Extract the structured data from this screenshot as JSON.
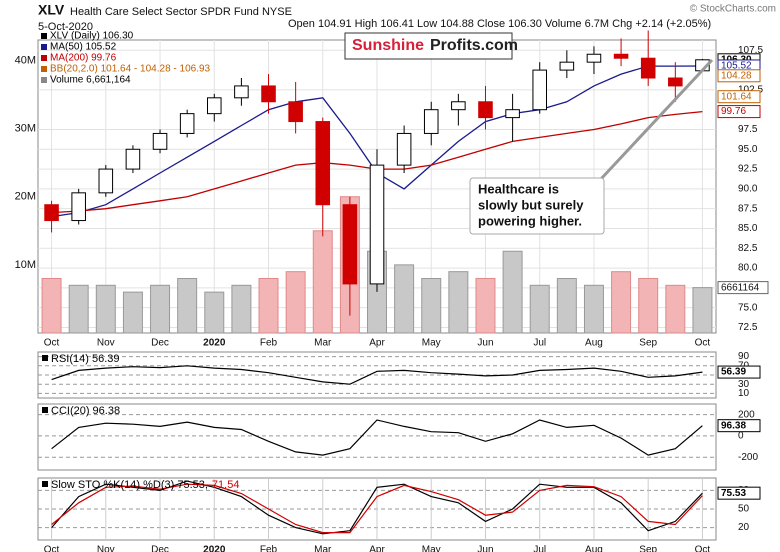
{
  "chart_data": [
    {
      "type": "candlestick",
      "title": "XLV",
      "subtitle": "Health Care Select Sector SPDR Fund NYSE",
      "date": "5-Oct-2020",
      "quote": "Open 104.91  High 106.41  Low 104.88  Close 106.30  Volume 6.7M  Chg +2.14 (+2.05%)",
      "source": "© StockCharts.com",
      "watermark": [
        "Sunshine",
        "Profits.com"
      ],
      "annotation": [
        "Healthcare is",
        "slowly but surely",
        "powering higher."
      ],
      "categories": [
        "Oct",
        null,
        "Nov",
        null,
        "Dec",
        null,
        "2020",
        null,
        "Feb",
        null,
        "Mar",
        null,
        "Apr",
        null,
        "May",
        null,
        "Jun",
        null,
        "Jul",
        null,
        "Aug",
        null,
        "Sep",
        null,
        "Oct"
      ],
      "name": "XLV (Daily) 106.30",
      "open": [
        88,
        86,
        89.5,
        92.5,
        95,
        97,
        99.5,
        101.5,
        103,
        101,
        98.5,
        88,
        78,
        93,
        97,
        100,
        101,
        99,
        100,
        105,
        106,
        107,
        106.5,
        104,
        104.91
      ],
      "high": [
        88.5,
        90,
        93,
        95.5,
        97.5,
        100,
        102,
        104,
        104.5,
        103.5,
        99,
        89,
        95,
        98,
        101,
        102,
        103,
        102,
        106,
        107.5,
        108,
        109,
        110,
        106,
        106.41
      ],
      "low": [
        84.5,
        85.5,
        89,
        92,
        94.5,
        96.5,
        98.5,
        100.5,
        99.5,
        97,
        84,
        74,
        77,
        92,
        95.5,
        98,
        97.5,
        96,
        99.5,
        104,
        104.5,
        105.5,
        103,
        101,
        104.88
      ],
      "close": [
        86,
        89.5,
        92.5,
        95,
        97,
        99.5,
        101.5,
        103,
        101,
        98.5,
        88,
        78,
        93,
        97,
        100,
        101,
        99,
        100,
        105,
        106,
        107,
        106.5,
        104,
        103,
        106.3
      ],
      "series": [
        {
          "name": "MA(50) 105.52",
          "color": "#1a1a8c",
          "values": [
            86.5,
            87,
            88,
            90,
            92,
            94,
            96,
            98,
            100,
            101,
            101.5,
            97,
            92,
            90,
            93,
            96,
            98.5,
            99.5,
            100,
            101,
            103,
            104.5,
            105.5,
            105.5,
            105.52
          ]
        },
        {
          "name": "MA(200) 99.76",
          "color": "#c00000",
          "values": [
            87,
            87.2,
            87.5,
            88,
            88.5,
            89,
            90,
            91,
            92,
            93,
            93.3,
            93,
            92.5,
            92.5,
            93,
            94,
            95,
            96,
            96.5,
            97,
            97.5,
            98.2,
            99,
            99.4,
            99.76
          ]
        }
      ],
      "bb_label": "BB(20,2.0) 101.64 - 104.28 - 106.93",
      "volume": {
        "name": "Volume 6,661,164",
        "ylim": [
          0,
          43
        ],
        "yticks": [
          {
            "value": 10,
            "label": "10M"
          },
          {
            "value": 20,
            "label": "20M"
          },
          {
            "value": 30,
            "label": "30M"
          },
          {
            "value": 40,
            "label": "40M"
          }
        ],
        "values": [
          8,
          7,
          7,
          6,
          7,
          8,
          6,
          7,
          8,
          9,
          15,
          20,
          12,
          10,
          8,
          9,
          8,
          12,
          7,
          8,
          7,
          9,
          8,
          7,
          6.66
        ],
        "badge": {
          "value": 6.661164,
          "label": "6661164"
        }
      },
      "ylim": [
        71.8,
        108.8
      ],
      "yticks": [
        {
          "value": 72.5,
          "label": "72.5"
        },
        {
          "value": 75,
          "label": "75.0"
        },
        {
          "value": 77.5,
          "label": "77.5"
        },
        {
          "value": 80,
          "label": "80.0"
        },
        {
          "value": 82.5,
          "label": "82.5"
        },
        {
          "value": 85,
          "label": "85.0"
        },
        {
          "value": 87.5,
          "label": "87.5"
        },
        {
          "value": 90,
          "label": "90.0"
        },
        {
          "value": 92.5,
          "label": "92.5"
        },
        {
          "value": 95,
          "label": "95.0"
        },
        {
          "value": 97.5,
          "label": "97.5"
        },
        {
          "value": 102.5,
          "label": "102.5"
        },
        {
          "value": 107.5,
          "label": "107.5"
        }
      ],
      "badges": [
        {
          "value": 106.3,
          "label": "106.30",
          "color": "#000000"
        },
        {
          "value": 105.52,
          "label": "105.52",
          "color": "#1a1a8c"
        },
        {
          "value": 104.28,
          "label": "104.28",
          "color": "#c06000"
        },
        {
          "value": 101.64,
          "label": "101.64",
          "color": "#c06000"
        },
        {
          "value": 99.76,
          "label": "99.76",
          "color": "#c00000"
        }
      ],
      "grid": true
    },
    {
      "type": "line",
      "ylim": [
        0,
        100
      ],
      "yticks": [
        90,
        70,
        50,
        30,
        10
      ],
      "grid": true,
      "series": [
        {
          "name": "RSI(14) 56.39",
          "color": "#000000",
          "values": [
            40,
            60,
            65,
            68,
            66,
            70,
            65,
            62,
            55,
            45,
            35,
            30,
            58,
            60,
            55,
            52,
            48,
            50,
            60,
            62,
            65,
            58,
            45,
            48,
            56.39
          ]
        }
      ],
      "badges": [
        {
          "value": 56.39,
          "label": "56.39",
          "color": "#000000"
        }
      ]
    },
    {
      "type": "line",
      "ylim": [
        -320,
        300
      ],
      "yticks": [
        200,
        0,
        -200
      ],
      "grid": true,
      "series": [
        {
          "name": "CCI(20) 96.38",
          "color": "#000000",
          "values": [
            -120,
            80,
            120,
            110,
            90,
            130,
            80,
            60,
            -50,
            -150,
            -180,
            -120,
            150,
            90,
            40,
            30,
            -50,
            20,
            150,
            80,
            100,
            -20,
            -180,
            -120,
            96.38
          ]
        }
      ],
      "badges": [
        {
          "value": 96.38,
          "label": "96.38",
          "color": "#000000"
        }
      ]
    },
    {
      "type": "line",
      "ylim": [
        0,
        100
      ],
      "yticks": [
        80,
        50,
        20
      ],
      "grid": true,
      "categories": [
        "Oct",
        null,
        "Nov",
        null,
        "Dec",
        null,
        "2020",
        null,
        "Feb",
        null,
        "Mar",
        null,
        "Apr",
        null,
        "May",
        null,
        "Jun",
        null,
        "Jul",
        null,
        "Aug",
        null,
        "Sep",
        null,
        "Oct"
      ],
      "series": [
        {
          "name": "Slow STO %K(14) %D(3) 75.53,",
          "color": "#000000",
          "values": [
            20,
            70,
            90,
            85,
            80,
            95,
            85,
            70,
            40,
            20,
            10,
            15,
            85,
            90,
            70,
            60,
            30,
            50,
            90,
            85,
            85,
            60,
            15,
            30,
            75.53
          ]
        },
        {
          "name": "71.54",
          "color": "#d00000",
          "values": [
            25,
            60,
            85,
            87,
            82,
            90,
            88,
            75,
            50,
            25,
            12,
            12,
            70,
            88,
            78,
            65,
            40,
            45,
            80,
            88,
            86,
            70,
            30,
            25,
            71.54
          ]
        }
      ],
      "badges": [
        {
          "value": 75.53,
          "label": "75.53",
          "color": "#000000"
        }
      ]
    }
  ]
}
